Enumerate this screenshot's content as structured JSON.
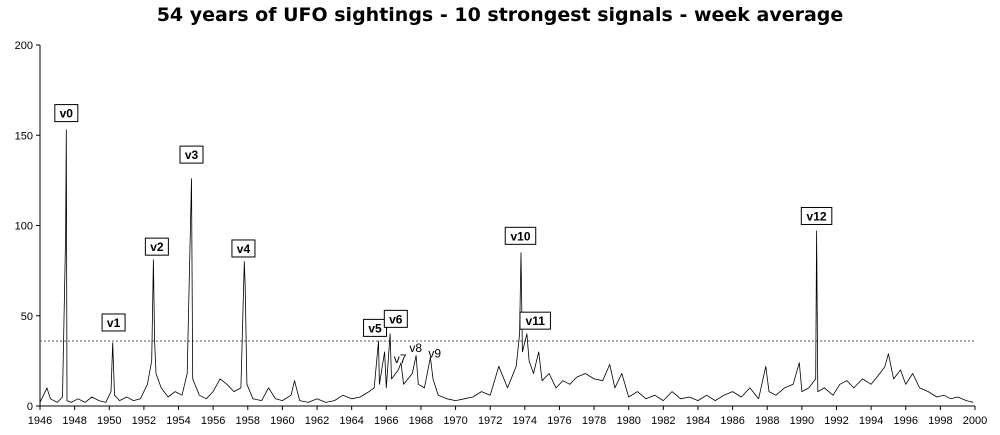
{
  "chart_data": {
    "type": "line",
    "title": "54 years of UFO sightings - 10 strongest signals - week average",
    "xlabel": "",
    "ylabel": "",
    "xlim": [
      1946,
      2000
    ],
    "ylim": [
      0,
      200
    ],
    "x_ticks": [
      1946,
      1948,
      1950,
      1952,
      1954,
      1956,
      1958,
      1960,
      1962,
      1964,
      1966,
      1968,
      1970,
      1972,
      1974,
      1976,
      1978,
      1980,
      1982,
      1984,
      1986,
      1988,
      1990,
      1992,
      1994,
      1996,
      1998,
      2000
    ],
    "y_ticks": [
      0,
      50,
      100,
      150,
      200
    ],
    "grid": false,
    "reference_line": {
      "y": 36,
      "style": "dotted"
    },
    "series": [
      {
        "color": "#000000",
        "points": [
          [
            1946.0,
            2
          ],
          [
            1946.4,
            10
          ],
          [
            1946.6,
            4
          ],
          [
            1947.0,
            2
          ],
          [
            1947.3,
            5
          ],
          [
            1947.48,
            94
          ],
          [
            1947.52,
            153
          ],
          [
            1947.56,
            3
          ],
          [
            1947.8,
            2
          ],
          [
            1948.2,
            4
          ],
          [
            1948.6,
            2
          ],
          [
            1949.0,
            5
          ],
          [
            1949.4,
            3
          ],
          [
            1949.8,
            2
          ],
          [
            1950.1,
            8
          ],
          [
            1950.2,
            35
          ],
          [
            1950.3,
            6
          ],
          [
            1950.6,
            3
          ],
          [
            1951.0,
            5
          ],
          [
            1951.4,
            3
          ],
          [
            1951.8,
            4
          ],
          [
            1952.2,
            12
          ],
          [
            1952.45,
            25
          ],
          [
            1952.55,
            81
          ],
          [
            1952.62,
            36
          ],
          [
            1952.7,
            18
          ],
          [
            1953.0,
            10
          ],
          [
            1953.4,
            5
          ],
          [
            1953.8,
            8
          ],
          [
            1954.2,
            6
          ],
          [
            1954.5,
            18
          ],
          [
            1954.75,
            126
          ],
          [
            1954.82,
            15
          ],
          [
            1955.2,
            6
          ],
          [
            1955.6,
            4
          ],
          [
            1956.0,
            8
          ],
          [
            1956.4,
            15
          ],
          [
            1956.8,
            12
          ],
          [
            1957.2,
            8
          ],
          [
            1957.6,
            10
          ],
          [
            1957.8,
            80
          ],
          [
            1957.85,
            66
          ],
          [
            1957.95,
            12
          ],
          [
            1958.3,
            4
          ],
          [
            1958.8,
            3
          ],
          [
            1959.2,
            10
          ],
          [
            1959.6,
            4
          ],
          [
            1960.0,
            3
          ],
          [
            1960.5,
            6
          ],
          [
            1960.7,
            14
          ],
          [
            1961.0,
            3
          ],
          [
            1961.5,
            2
          ],
          [
            1962.0,
            4
          ],
          [
            1962.5,
            2
          ],
          [
            1963.0,
            3
          ],
          [
            1963.5,
            6
          ],
          [
            1964.0,
            4
          ],
          [
            1964.5,
            5
          ],
          [
            1965.0,
            8
          ],
          [
            1965.3,
            10
          ],
          [
            1965.55,
            36
          ],
          [
            1965.6,
            12
          ],
          [
            1965.9,
            30
          ],
          [
            1966.0,
            10
          ],
          [
            1966.22,
            40
          ],
          [
            1966.3,
            15
          ],
          [
            1966.7,
            20
          ],
          [
            1966.85,
            24
          ],
          [
            1967.0,
            12
          ],
          [
            1967.5,
            18
          ],
          [
            1967.72,
            28
          ],
          [
            1967.85,
            12
          ],
          [
            1968.2,
            10
          ],
          [
            1968.55,
            27
          ],
          [
            1968.7,
            15
          ],
          [
            1969.0,
            6
          ],
          [
            1969.5,
            4
          ],
          [
            1970.0,
            3
          ],
          [
            1970.5,
            4
          ],
          [
            1971.0,
            5
          ],
          [
            1971.5,
            8
          ],
          [
            1972.0,
            6
          ],
          [
            1972.5,
            22
          ],
          [
            1973.0,
            10
          ],
          [
            1973.5,
            22
          ],
          [
            1973.7,
            40
          ],
          [
            1973.78,
            85
          ],
          [
            1973.86,
            30
          ],
          [
            1974.12,
            40
          ],
          [
            1974.25,
            25
          ],
          [
            1974.5,
            18
          ],
          [
            1974.8,
            30
          ],
          [
            1975.0,
            14
          ],
          [
            1975.4,
            18
          ],
          [
            1975.8,
            10
          ],
          [
            1976.2,
            14
          ],
          [
            1976.6,
            12
          ],
          [
            1977.0,
            16
          ],
          [
            1977.5,
            18
          ],
          [
            1978.0,
            15
          ],
          [
            1978.5,
            14
          ],
          [
            1978.9,
            23
          ],
          [
            1979.2,
            10
          ],
          [
            1979.6,
            18
          ],
          [
            1980.0,
            5
          ],
          [
            1980.5,
            8
          ],
          [
            1981.0,
            4
          ],
          [
            1981.5,
            6
          ],
          [
            1982.0,
            3
          ],
          [
            1982.5,
            8
          ],
          [
            1983.0,
            4
          ],
          [
            1983.5,
            5
          ],
          [
            1984.0,
            3
          ],
          [
            1984.5,
            6
          ],
          [
            1985.0,
            3
          ],
          [
            1985.5,
            6
          ],
          [
            1986.0,
            8
          ],
          [
            1986.5,
            5
          ],
          [
            1987.0,
            10
          ],
          [
            1987.5,
            4
          ],
          [
            1987.92,
            22
          ],
          [
            1988.1,
            8
          ],
          [
            1988.5,
            6
          ],
          [
            1989.0,
            10
          ],
          [
            1989.5,
            12
          ],
          [
            1989.85,
            24
          ],
          [
            1990.0,
            8
          ],
          [
            1990.4,
            10
          ],
          [
            1990.8,
            15
          ],
          [
            1990.85,
            97
          ],
          [
            1990.92,
            8
          ],
          [
            1991.3,
            10
          ],
          [
            1991.8,
            6
          ],
          [
            1992.2,
            12
          ],
          [
            1992.6,
            14
          ],
          [
            1993.0,
            10
          ],
          [
            1993.5,
            15
          ],
          [
            1994.0,
            12
          ],
          [
            1994.5,
            18
          ],
          [
            1994.8,
            22
          ],
          [
            1995.0,
            29
          ],
          [
            1995.3,
            15
          ],
          [
            1995.7,
            20
          ],
          [
            1996.0,
            12
          ],
          [
            1996.4,
            18
          ],
          [
            1996.8,
            10
          ],
          [
            1997.3,
            8
          ],
          [
            1997.8,
            5
          ],
          [
            1998.2,
            6
          ],
          [
            1998.6,
            4
          ],
          [
            1999.0,
            5
          ],
          [
            1999.5,
            3
          ],
          [
            1999.9,
            2
          ]
        ]
      }
    ],
    "annotations": [
      {
        "label": "v0",
        "x": 1947.52,
        "y": 162,
        "boxed": true
      },
      {
        "label": "v1",
        "x": 1950.25,
        "y": 46,
        "boxed": true
      },
      {
        "label": "v2",
        "x": 1952.75,
        "y": 88,
        "boxed": true
      },
      {
        "label": "v3",
        "x": 1954.75,
        "y": 139,
        "boxed": true
      },
      {
        "label": "v4",
        "x": 1957.75,
        "y": 87,
        "boxed": true
      },
      {
        "label": "v5",
        "x": 1965.35,
        "y": 43,
        "boxed": true
      },
      {
        "label": "v6",
        "x": 1966.55,
        "y": 48,
        "boxed": true
      },
      {
        "label": "v7",
        "x": 1966.8,
        "y": 26,
        "boxed": false
      },
      {
        "label": "v8",
        "x": 1967.7,
        "y": 32,
        "boxed": false
      },
      {
        "label": "v9",
        "x": 1968.8,
        "y": 29,
        "boxed": false
      },
      {
        "label": "v10",
        "x": 1973.75,
        "y": 94,
        "boxed": true
      },
      {
        "label": "v11",
        "x": 1974.6,
        "y": 47,
        "boxed": true
      },
      {
        "label": "v12",
        "x": 1990.85,
        "y": 105,
        "boxed": true
      }
    ]
  }
}
